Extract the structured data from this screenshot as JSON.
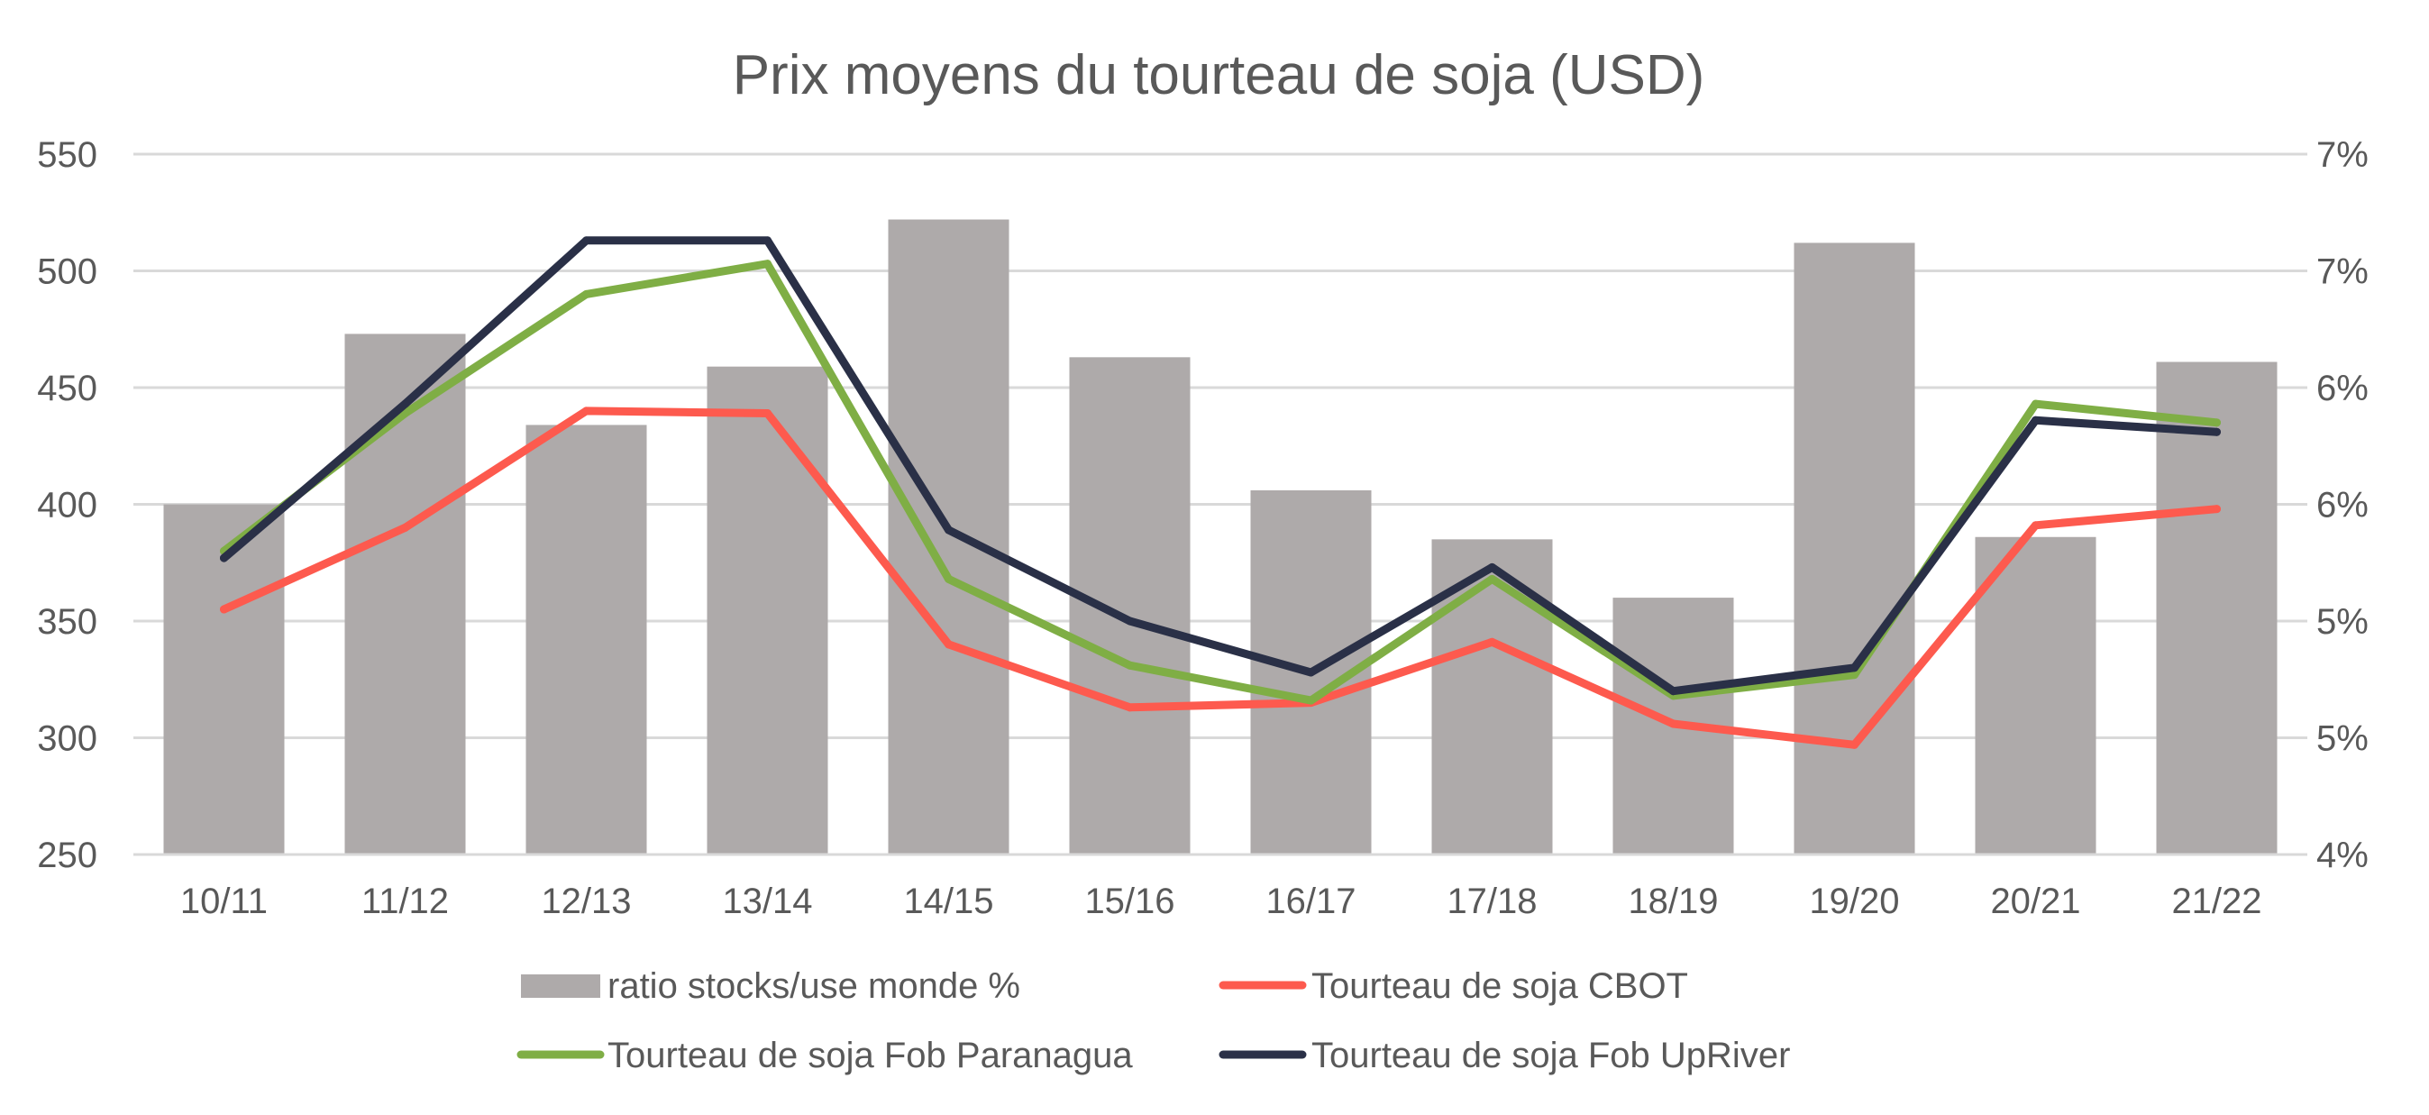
{
  "chart_data": {
    "type": "bar",
    "title": "Prix moyens du tourteau de soja (USD)",
    "categories": [
      "10/11",
      "11/12",
      "12/13",
      "13/14",
      "14/15",
      "15/16",
      "16/17",
      "17/18",
      "18/19",
      "19/20",
      "20/21",
      "21/22"
    ],
    "y_left": {
      "min": 250,
      "max": 550,
      "ticks": [
        550,
        500,
        450,
        400,
        350,
        300,
        250
      ]
    },
    "y_right": {
      "min": 4.5,
      "max": 7.5,
      "ticks": [
        "7%",
        "7%",
        "6%",
        "6%",
        "5%",
        "5%",
        "4%"
      ]
    },
    "grid": true,
    "legend_position": "bottom",
    "series": [
      {
        "name": "ratio stocks/use monde %",
        "type": "bar",
        "axis": "right",
        "color": "#aeaaaa",
        "values": [
          6.0,
          6.73,
          6.34,
          6.59,
          7.22,
          6.63,
          6.06,
          5.85,
          5.6,
          7.12,
          5.86,
          6.61
        ]
      },
      {
        "name": "Tourteau de soja CBOT",
        "type": "line",
        "axis": "left",
        "color": "#fd5a4e",
        "values": [
          355,
          390,
          440,
          439,
          340,
          313,
          315,
          341,
          306,
          297,
          391,
          398
        ]
      },
      {
        "name": "Tourteau de soja Fob Paranagua",
        "type": "line",
        "axis": "left",
        "color": "#7fae45",
        "values": [
          380,
          439,
          490,
          503,
          368,
          331,
          316,
          368,
          318,
          327,
          443,
          435
        ]
      },
      {
        "name": "Tourteau de soja Fob UpRiver",
        "type": "line",
        "axis": "left",
        "color": "#2a3047",
        "values": [
          377,
          443,
          513,
          513,
          389,
          350,
          328,
          373,
          320,
          330,
          436,
          431
        ]
      }
    ]
  }
}
